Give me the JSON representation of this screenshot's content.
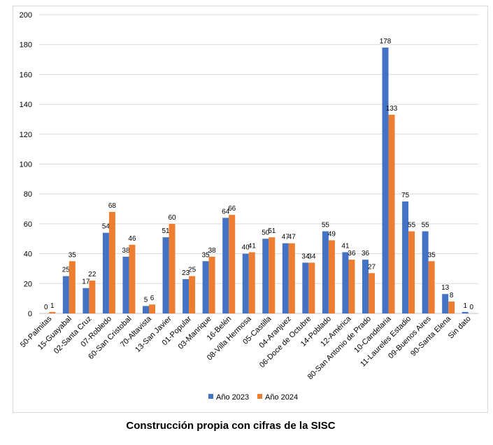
{
  "caption": "Construcción propia con cifras de la SISC",
  "colors": {
    "series_2023": "#4472C4",
    "series_2024": "#ED7D31",
    "grid": "#d9d9d9",
    "axis": "#bfbfbf"
  },
  "chart_data": {
    "type": "bar",
    "title": "",
    "xlabel": "",
    "ylabel": "",
    "ylim": [
      0,
      200
    ],
    "yticks": [
      0,
      20,
      40,
      60,
      80,
      100,
      120,
      140,
      160,
      180,
      200
    ],
    "grid": true,
    "legend_position": "bottom",
    "categories": [
      "50-Palmitas",
      "15-Guayabal",
      "02-Santa Cruz",
      "07-Robledo",
      "60-San Cristobal",
      "70-Altavista",
      "13-San Javier",
      "01-Popular",
      "03-Manrique",
      "16-Belén",
      "08-Villa Hermosa",
      "05-Castilla",
      "04-Aranjuez",
      "06-Doce de Octubre",
      "14-Poblado",
      "12-América",
      "80-San Antonio de Prado",
      "10-Candelaria",
      "11-Laureles Estadio",
      "09-Buenos Aires",
      "90-Santa Elena",
      "Sin dato"
    ],
    "series": [
      {
        "name": "Año 2023",
        "values": [
          0,
          25,
          17,
          54,
          38,
          5,
          51,
          23,
          35,
          64,
          40,
          50,
          47,
          34,
          55,
          41,
          36,
          178,
          75,
          55,
          13,
          1
        ]
      },
      {
        "name": "Año 2024",
        "values": [
          1,
          35,
          22,
          68,
          46,
          6,
          60,
          25,
          38,
          66,
          41,
          51,
          47,
          34,
          49,
          36,
          27,
          133,
          55,
          35,
          8,
          0
        ]
      }
    ]
  }
}
